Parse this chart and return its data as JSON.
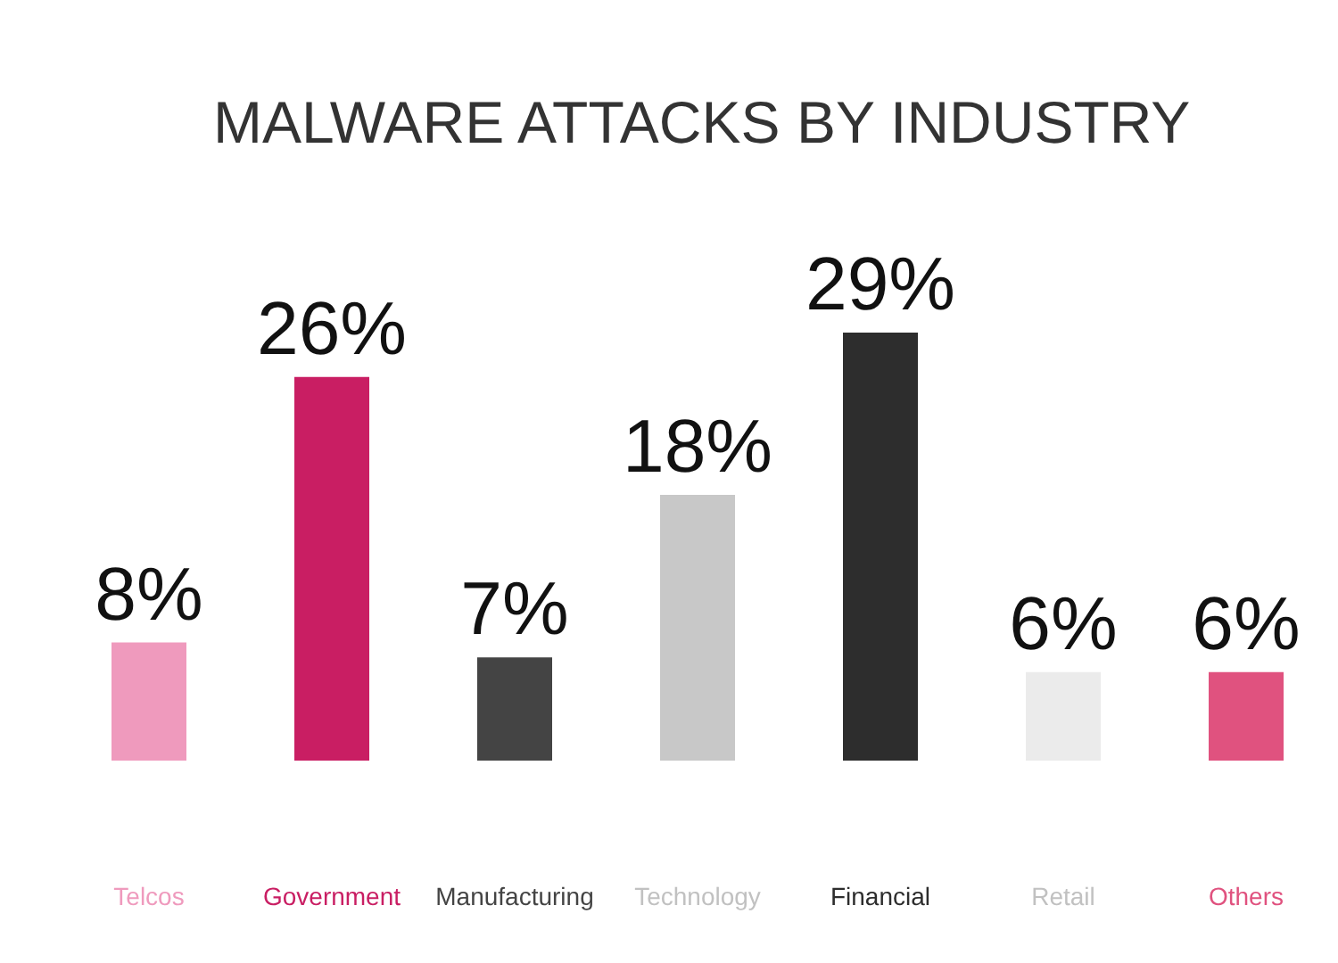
{
  "chart_data": {
    "type": "bar",
    "title": "MALWARE ATTACKS BY INDUSTRY",
    "categories": [
      "Telcos",
      "Government",
      "Manufacturing",
      "Technology",
      "Financial",
      "Retail",
      "Others"
    ],
    "values": [
      8,
      26,
      7,
      18,
      29,
      6,
      6
    ],
    "value_labels": [
      "8%",
      "26%",
      "7%",
      "18%",
      "29%",
      "6%",
      "6%"
    ],
    "colors": [
      "#ef9abd",
      "#c91e63",
      "#444444",
      "#c8c8c8",
      "#2d2d2d",
      "#ebebeb",
      "#e0527f"
    ]
  }
}
